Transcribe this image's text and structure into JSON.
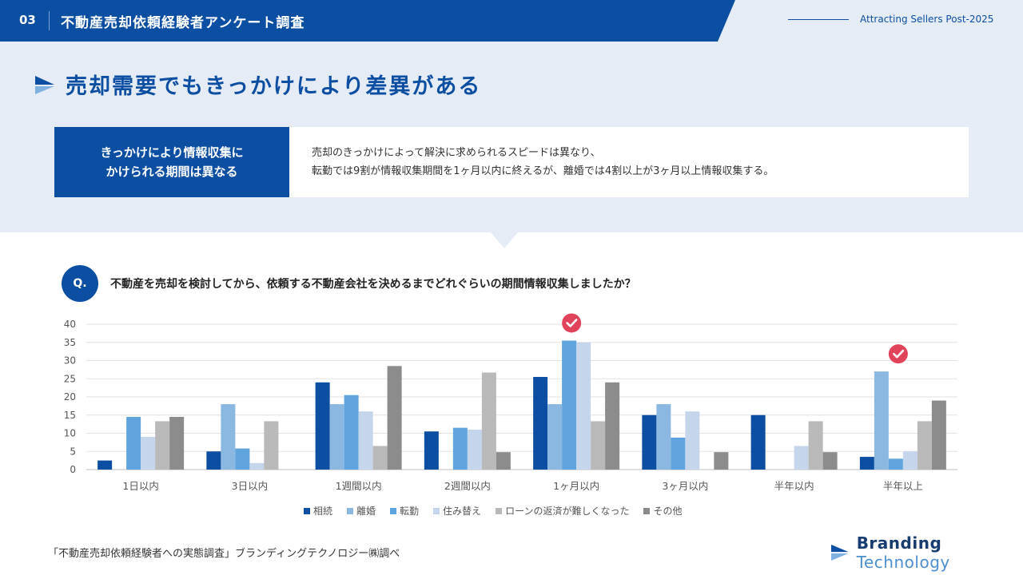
{
  "header": {
    "section_number": "03",
    "title": "不動産売却依頼経験者アンケート調査",
    "tagline": "Attracting Sellers Post-2025"
  },
  "page_title": "売却需要でもきっかけにより差異がある",
  "summary": {
    "headline_line1": "きっかけにより情報収集に",
    "headline_line2": "かけられる期間は異なる",
    "description_line1": "売却のきっかけによって解決に求められるスピードは異なり、",
    "description_line2": "転勤では9割が情報収集期間を1ヶ月以内に終えるが、離婚では4割以上が3ヶ月以上情報収集する。"
  },
  "question": {
    "badge": "Q.",
    "text": "不動産を売却を検討してから、依頼する不動産会社を決めるまでどれぐらいの期間情報収集しましたか？"
  },
  "chart_data": {
    "type": "bar",
    "categories": [
      "1日以内",
      "3日以内",
      "1週間以内",
      "2週間以内",
      "1ヶ月以内",
      "3ヶ月以内",
      "半年以内",
      "半年以上"
    ],
    "series": [
      {
        "name": "相続",
        "color": "#0b4ea2",
        "values": [
          2.5,
          5,
          24,
          10.5,
          25.5,
          15,
          15,
          3.5
        ]
      },
      {
        "name": "離婚",
        "color": "#8ab8e0",
        "values": [
          0,
          18,
          18,
          0,
          18,
          18,
          0,
          27
        ]
      },
      {
        "name": "転勤",
        "color": "#5fa4dc",
        "values": [
          14.5,
          5.8,
          20.5,
          11.5,
          35.5,
          8.8,
          0,
          3
        ]
      },
      {
        "name": "住み替え",
        "color": "#c5d5ec",
        "values": [
          9,
          1.8,
          16,
          11,
          35,
          16,
          6.5,
          5
        ]
      },
      {
        "name": "ローンの返済が難しくなった",
        "color": "#b9b9b9",
        "values": [
          13.3,
          13.3,
          6.5,
          26.7,
          13.3,
          0,
          13.3,
          13.3
        ]
      },
      {
        "name": "その他",
        "color": "#8c8c8c",
        "values": [
          14.5,
          0,
          28.5,
          4.8,
          24,
          4.8,
          4.8,
          19
        ]
      }
    ],
    "ylim": [
      0,
      40
    ],
    "yticks": [
      0,
      5,
      10,
      15,
      20,
      25,
      30,
      35,
      40
    ],
    "grid": true,
    "legend": "bottom",
    "highlights": [
      "1ヶ月以内",
      "半年以上"
    ]
  },
  "footnote": "「不動産売却依頼経験者への実態調査」ブランディングテクノロジー㈱調べ",
  "brand": {
    "word1": "Branding",
    "word2": "Technology"
  },
  "colors": {
    "primary": "#0b4ea2",
    "background": "#e6ecf5",
    "check": "#e0435a"
  },
  "icons": {
    "title": "arrow-flag-icon",
    "check": "check-circle-icon",
    "brand": "brand-logo-icon"
  }
}
